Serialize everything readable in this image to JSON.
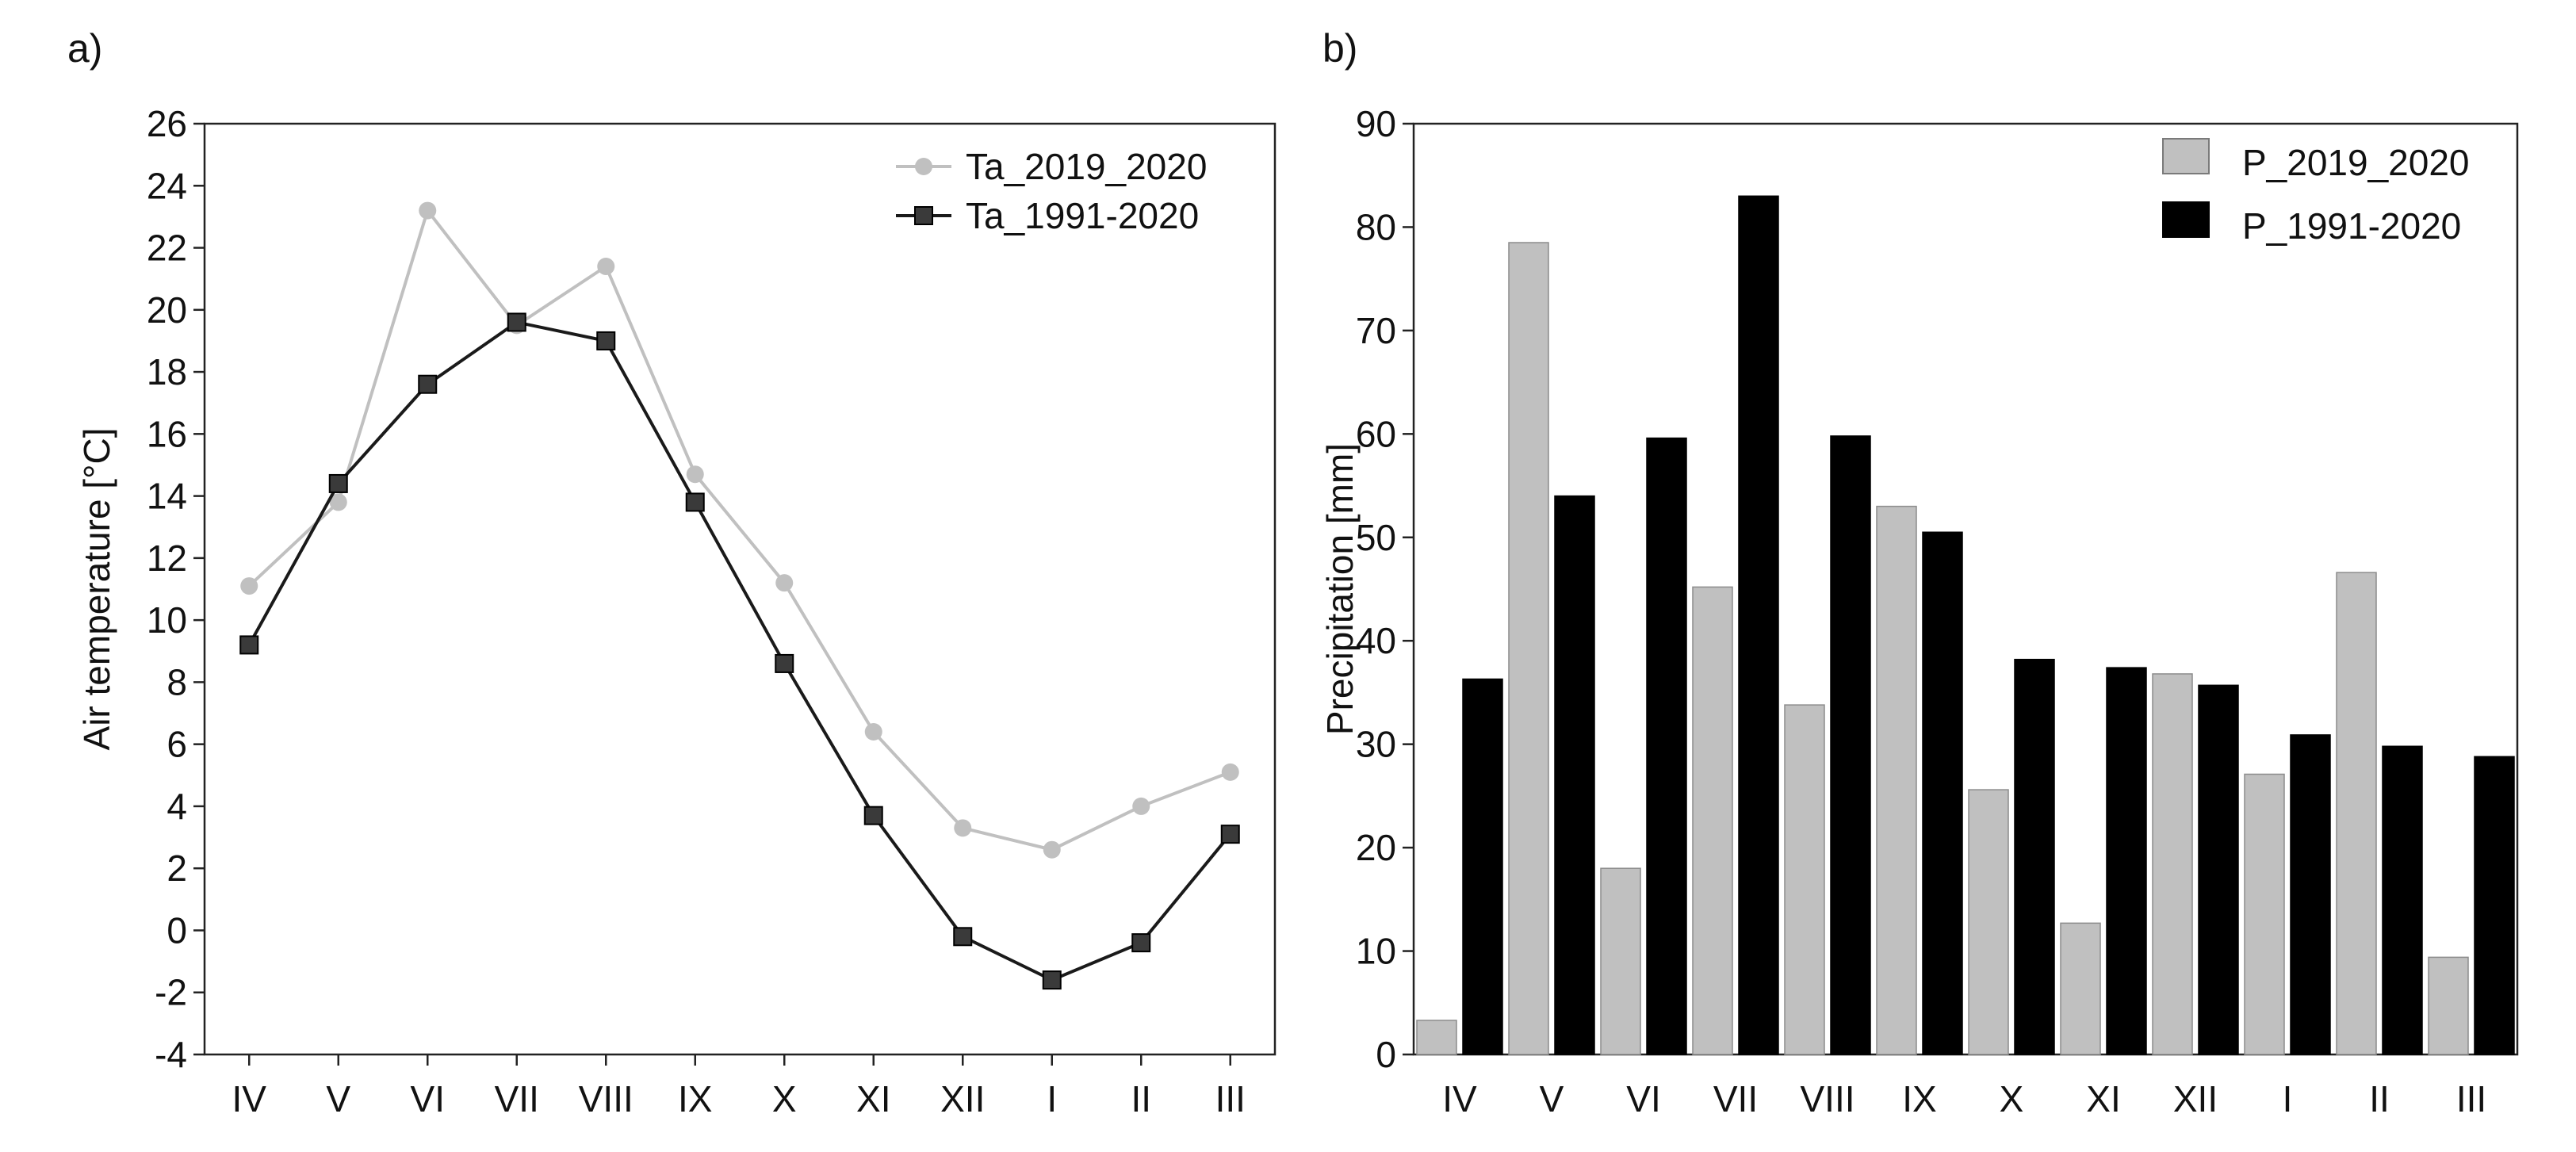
{
  "chart_data": [
    {
      "panel": "a)",
      "type": "line",
      "ylabel": "Air temperature [°C]",
      "xlabel": "",
      "categories": [
        "IV",
        "V",
        "VI",
        "VII",
        "VIII",
        "IX",
        "X",
        "XI",
        "XII",
        "I",
        "II",
        "III"
      ],
      "ylim": [
        -4,
        26
      ],
      "yticks": [
        -4,
        -2,
        0,
        2,
        4,
        6,
        8,
        10,
        12,
        14,
        16,
        18,
        20,
        22,
        24,
        26
      ],
      "legend_position": "top-right",
      "grid": false,
      "series": [
        {
          "name": "Ta_2019_2020",
          "color": "#c0c0c0",
          "marker": "circle",
          "values": [
            11.1,
            13.8,
            23.2,
            19.5,
            21.4,
            14.7,
            11.2,
            6.4,
            3.3,
            2.6,
            4.0,
            5.1
          ]
        },
        {
          "name": "Ta_1991-2020",
          "color": "#1a1a1a",
          "marker": "square",
          "values": [
            9.2,
            14.4,
            17.6,
            19.6,
            19.0,
            13.8,
            8.6,
            3.7,
            -0.2,
            -1.6,
            -0.4,
            3.1
          ]
        }
      ]
    },
    {
      "panel": "b)",
      "type": "bar",
      "ylabel": "Precipitation [mm]",
      "xlabel": "",
      "categories": [
        "IV",
        "V",
        "VI",
        "VII",
        "VIII",
        "IX",
        "X",
        "XI",
        "XII",
        "I",
        "II",
        "III"
      ],
      "ylim": [
        0,
        90
      ],
      "yticks": [
        0,
        10,
        20,
        30,
        40,
        50,
        60,
        70,
        80,
        90
      ],
      "legend_position": "top-right",
      "grid": false,
      "series": [
        {
          "name": "P_2019_2020",
          "color": "#c0c0c0",
          "values": [
            3.3,
            78.5,
            18.0,
            45.2,
            33.8,
            53.0,
            25.6,
            12.7,
            36.8,
            27.1,
            46.6,
            9.4
          ]
        },
        {
          "name": "P_1991-2020",
          "color": "#000000",
          "values": [
            36.3,
            54.0,
            59.6,
            83.0,
            59.8,
            50.5,
            38.2,
            37.4,
            35.7,
            30.9,
            29.8,
            28.8
          ]
        }
      ]
    }
  ]
}
